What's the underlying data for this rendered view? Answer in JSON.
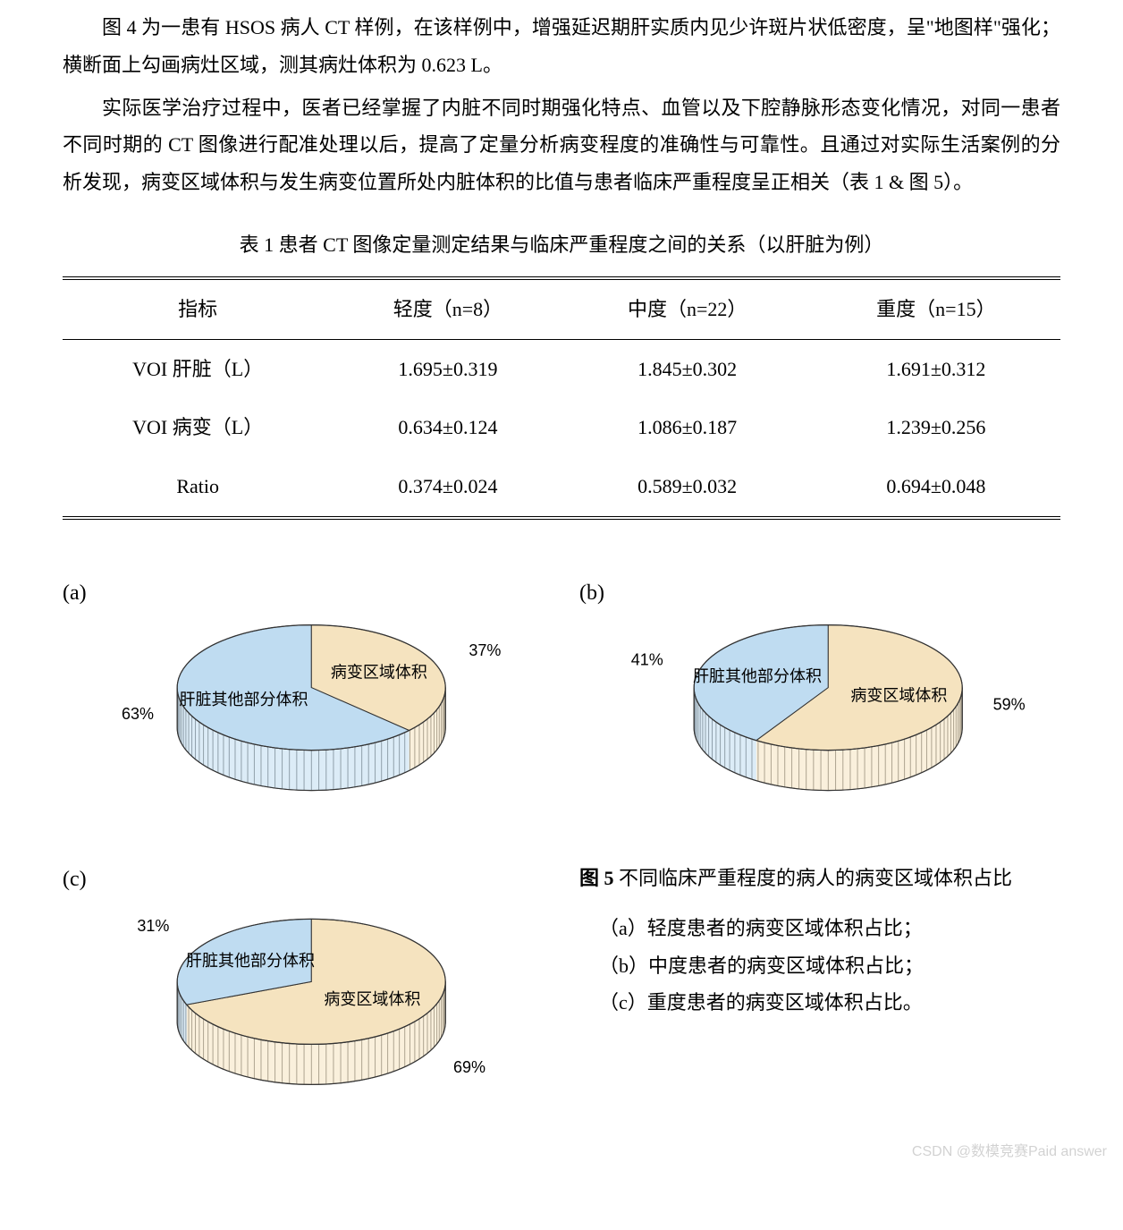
{
  "paragraphs": {
    "p1": "图 4 为一患有 HSOS 病人 CT 样例，在该样例中，增强延迟期肝实质内见少许斑片状低密度，呈\"地图样\"强化；横断面上勾画病灶区域，测其病灶体积为 0.623 L。",
    "p2": "实际医学治疗过程中，医者已经掌握了内脏不同时期强化特点、血管以及下腔静脉形态变化情况，对同一患者不同时期的 CT 图像进行配准处理以后，提高了定量分析病变程度的准确性与可靠性。且通过对实际生活案例的分析发现，病变区域体积与发生病变位置所处内脏体积的比值与患者临床严重程度呈正相关（表 1 &  图 5）。"
  },
  "table": {
    "title": "表 1  患者 CT 图像定量测定结果与临床严重程度之间的关系（以肝脏为例）",
    "columns": [
      "指标",
      "轻度（n=8）",
      "中度（n=22）",
      "重度（n=15）"
    ],
    "rows": [
      [
        "VOI 肝脏（L）",
        "1.695±0.319",
        "1.845±0.302",
        "1.691±0.312"
      ],
      [
        "VOI 病变（L）",
        "0.634±0.124",
        "1.086±0.187",
        "1.239±0.256"
      ],
      [
        "Ratio",
        "0.374±0.024",
        "0.589±0.032",
        "0.694±0.048"
      ]
    ],
    "font_size": 22,
    "border_color": "#000000"
  },
  "figure5": {
    "title_label": "图 5",
    "title_text": "不同临床严重程度的病人的病变区域体积占比",
    "items": [
      "（a）轻度患者的病变区域体积占比；",
      "（b）中度患者的病变区域体积占比；",
      "（c）重度患者的病变区域体积占比。"
    ]
  },
  "charts": {
    "type": "pie-3d",
    "colors": {
      "lesion": "#f5e3bf",
      "other": "#bfdcf1",
      "edge": "#333333",
      "side_hatch": "#555555",
      "label_text": "#000000"
    },
    "label_fontsize": 18,
    "pct_fontsize": 18,
    "panels": {
      "a": {
        "label": "(a)",
        "slices": [
          {
            "name": "病变区域体积",
            "pct": 37,
            "color_key": "lesion"
          },
          {
            "name": "肝脏其他部分体积",
            "pct": 63,
            "color_key": "other"
          }
        ]
      },
      "b": {
        "label": "(b)",
        "slices": [
          {
            "name": "病变区域体积",
            "pct": 59,
            "color_key": "lesion"
          },
          {
            "name": "肝脏其他部分体积",
            "pct": 41,
            "color_key": "other"
          }
        ]
      },
      "c": {
        "label": "(c)",
        "slices": [
          {
            "name": "病变区域体积",
            "pct": 69,
            "color_key": "lesion"
          },
          {
            "name": "肝脏其他部分体积",
            "pct": 31,
            "color_key": "other"
          }
        ]
      }
    }
  },
  "watermark": "CSDN @数模竞赛Paid answer"
}
